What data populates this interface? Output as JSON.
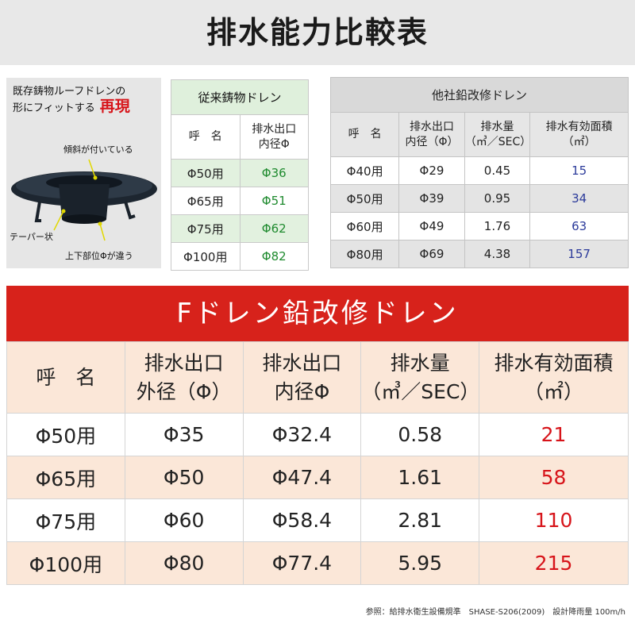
{
  "title": "排水能力比較表",
  "illustration": {
    "caption_line1": "既存鋳物ルーフドレンの",
    "caption_line2": "形にフィットする",
    "caption_emph": "再現",
    "label_slope": "傾斜が付いている",
    "label_taper": "テーパー状",
    "label_diff": "上下部位Φが違う"
  },
  "conventional": {
    "title": "従来鋳物ドレン",
    "headers": [
      "呼　名",
      "排水出口\n内径Φ"
    ],
    "rows": [
      [
        "Φ50用",
        "Φ36"
      ],
      [
        "Φ65用",
        "Φ51"
      ],
      [
        "Φ75用",
        "Φ62"
      ],
      [
        "Φ100用",
        "Φ82"
      ]
    ]
  },
  "other": {
    "title": "他社鉛改修ドレン",
    "headers": [
      "呼　名",
      "排水出口\n内径（Φ）",
      "排水量\n（㎥／SEC）",
      "排水有効面積\n（㎡）"
    ],
    "rows": [
      [
        "Φ40用",
        "Φ29",
        "0.45",
        "15"
      ],
      [
        "Φ50用",
        "Φ39",
        "0.95",
        "34"
      ],
      [
        "Φ60用",
        "Φ49",
        "1.76",
        "63"
      ],
      [
        "Φ80用",
        "Φ69",
        "4.38",
        "157"
      ]
    ]
  },
  "fdrain": {
    "title": "Fドレン鉛改修ドレン",
    "headers": [
      "呼　名",
      "排水出口\n外径（Φ）",
      "排水出口\n内径Φ",
      "排水量\n（㎥／SEC）",
      "排水有効面積\n（㎡）"
    ],
    "rows": [
      [
        "Φ50用",
        "Φ35",
        "Φ32.4",
        "0.58",
        "21"
      ],
      [
        "Φ65用",
        "Φ50",
        "Φ47.4",
        "1.61",
        "58"
      ],
      [
        "Φ75用",
        "Φ60",
        "Φ58.4",
        "2.81",
        "110"
      ],
      [
        "Φ100用",
        "Φ80",
        "Φ77.4",
        "5.95",
        "215"
      ]
    ]
  },
  "reference": "参照：給排水衛生設備規準　SHASE-S206(2009)　設計降雨量 100m/h",
  "colors": {
    "red": "#d7221b",
    "green_text": "#1e8a2e",
    "blue_text": "#2b3a9a"
  }
}
